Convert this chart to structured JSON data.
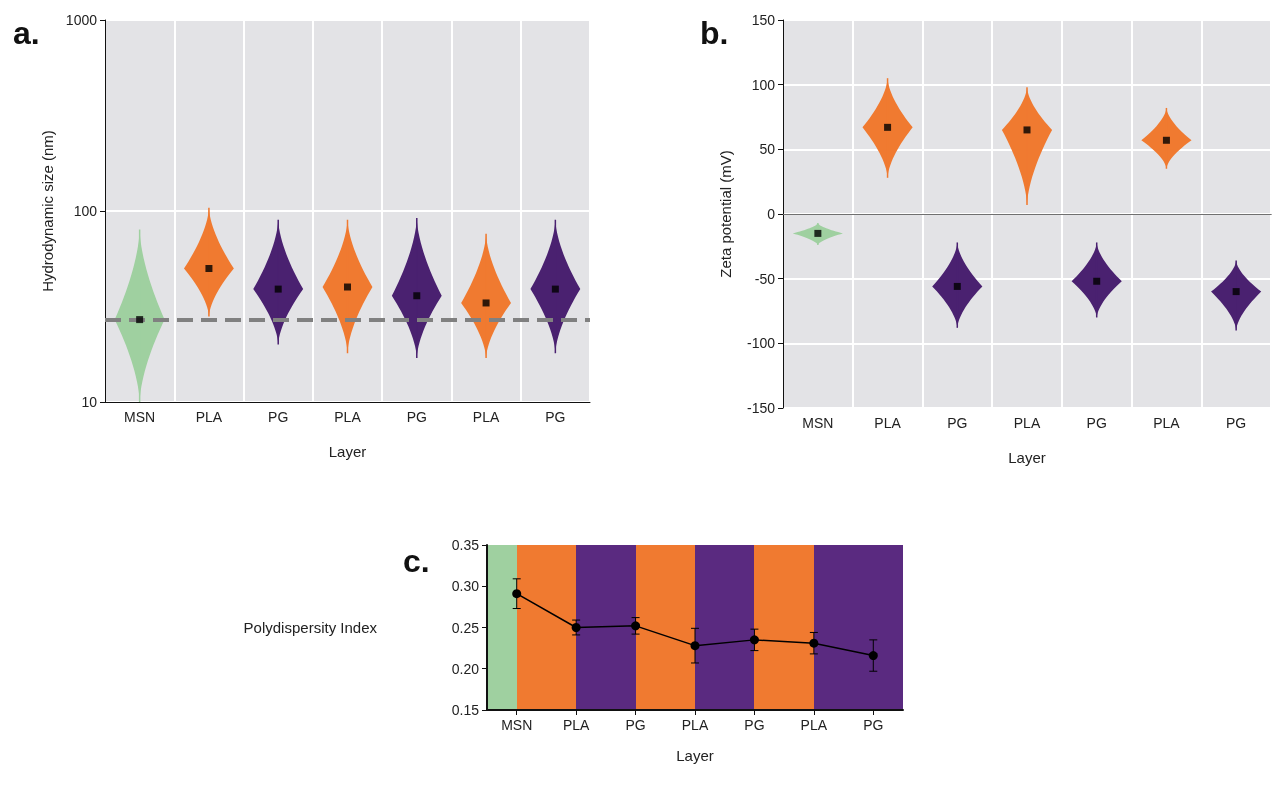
{
  "chart_data": [
    {
      "type": "scatter",
      "title": "a.",
      "xlabel": "Layer",
      "ylabel": "Hydrodynamic size (nm)",
      "categories": [
        "MSN",
        "PLA",
        "PG",
        "PLA",
        "PG",
        "PLA",
        "PG"
      ],
      "series": [
        {
          "color": "#000000",
          "values": [
            27,
            50,
            39,
            40,
            36,
            33,
            39
          ],
          "errors": [
            [
              10,
              80
            ],
            [
              28,
              104
            ],
            [
              20,
              90
            ],
            [
              18,
              90
            ],
            [
              17,
              92
            ],
            [
              17,
              76
            ],
            [
              18,
              90
            ]
          ]
        }
      ],
      "colors": [
        "#9fd0a0",
        "#f07a30",
        "#4a2170",
        "#f07a30",
        "#4a2170",
        "#f07a30",
        "#4a2170"
      ],
      "marker": "square",
      "log": "y",
      "ylim": [
        10,
        1000
      ],
      "yticks": [
        10,
        100,
        1000
      ],
      "grid": true,
      "ref_lines": [
        {
          "axis": "y",
          "value": 27,
          "color": "#808080",
          "line_style": "dashed"
        }
      ]
    },
    {
      "type": "scatter",
      "title": "b.",
      "xlabel": "Layer",
      "ylabel": "Zeta potential (mV)",
      "categories": [
        "MSN",
        "PLA",
        "PG",
        "PLA",
        "PG",
        "PLA",
        "PG"
      ],
      "series": [
        {
          "color": "#000000",
          "values": [
            -15,
            67,
            -56,
            65,
            -52,
            57,
            -60
          ],
          "errors": [
            [
              -24,
              -7
            ],
            [
              28,
              105
            ],
            [
              -88,
              -22
            ],
            [
              7,
              98
            ],
            [
              -80,
              -22
            ],
            [
              35,
              82
            ],
            [
              -90,
              -36
            ]
          ]
        }
      ],
      "colors": [
        "#9fd0a0",
        "#f07a30",
        "#4a2170",
        "#f07a30",
        "#4a2170",
        "#f07a30",
        "#4a2170"
      ],
      "marker": "square",
      "ylim": [
        -150,
        150
      ],
      "yticks": [
        -150,
        -100,
        -50,
        0,
        50,
        100,
        150
      ],
      "grid": true,
      "ref_lines": [
        {
          "axis": "y",
          "value": 0,
          "color": "#707070",
          "line_style": "solid"
        }
      ]
    },
    {
      "type": "line",
      "title": "c.",
      "xlabel": "Layer",
      "ylabel": "Polydispersity Index",
      "categories": [
        "MSN",
        "PLA",
        "PG",
        "PLA",
        "PG",
        "PLA",
        "PG"
      ],
      "series": [
        {
          "color": "#000000",
          "values": [
            0.291,
            0.25,
            0.252,
            0.228,
            0.235,
            0.231,
            0.216
          ],
          "errors": [
            0.018,
            0.009,
            0.01,
            0.021,
            0.013,
            0.013,
            0.019
          ]
        }
      ],
      "marker": "circle",
      "ylim": [
        0.15,
        0.35
      ],
      "yticks": [
        0.15,
        {
          "value": 0.2,
          "label": "0.20"
        },
        0.25,
        {
          "value": 0.3,
          "label": "0.30"
        },
        0.35
      ]
    }
  ]
}
